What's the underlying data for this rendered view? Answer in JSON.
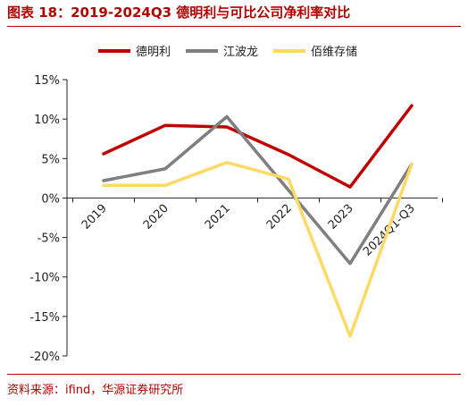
{
  "header": {
    "title": "图表 18：2019-2024Q3 德明利与可比公司净利率对比"
  },
  "footer": {
    "source": "资料来源：ifind，华源证券研究所"
  },
  "chart_data": {
    "type": "line",
    "title": "图表 18：2019-2024Q3 德明利与可比公司净利率对比",
    "categories": [
      "2019",
      "2020",
      "2021",
      "2022",
      "2023",
      "2024Q1-Q3"
    ],
    "series": [
      {
        "name": "德明利",
        "color": "#c00000",
        "values": [
          5.6,
          9.2,
          9.0,
          5.5,
          1.4,
          11.7
        ]
      },
      {
        "name": "江波龙",
        "color": "#7f7f7f",
        "values": [
          2.2,
          3.7,
          10.3,
          1.0,
          -8.3,
          4.3
        ]
      },
      {
        "name": "佰维存储",
        "color": "#ffd966",
        "values": [
          1.6,
          1.6,
          4.5,
          2.4,
          -17.5,
          4.3
        ]
      }
    ],
    "y_ticks": [
      "15%",
      "10%",
      "5%",
      "0%",
      "-5%",
      "-10%",
      "-15%",
      "-20%"
    ],
    "y_tick_values": [
      15,
      10,
      5,
      0,
      -5,
      -10,
      -15,
      -20
    ],
    "ylim": [
      -20,
      15
    ],
    "grid": false,
    "legend_position": "top"
  }
}
